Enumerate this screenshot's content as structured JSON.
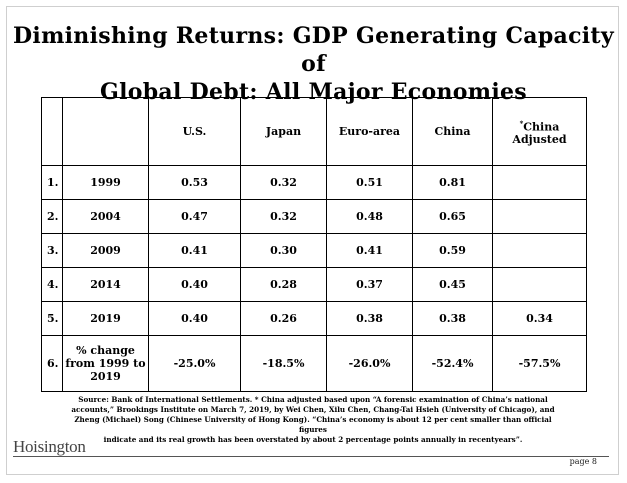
{
  "title": {
    "line1": "Diminishing Returns: GDP Generating Capacity of",
    "line2": "Global Debt: All Major Economies"
  },
  "table": {
    "headers": [
      "U.S.",
      "Japan",
      "Euro-area",
      "China"
    ],
    "china_adjusted_header": {
      "mark": "*",
      "line1": "China",
      "line2": "Adjusted"
    },
    "rows": [
      {
        "num": "1.",
        "label": "1999",
        "us": "0.53",
        "japan": "0.32",
        "euro": "0.51",
        "china": "0.81",
        "china_adj": ""
      },
      {
        "num": "2.",
        "label": "2004",
        "us": "0.47",
        "japan": "0.32",
        "euro": "0.48",
        "china": "0.65",
        "china_adj": ""
      },
      {
        "num": "3.",
        "label": "2009",
        "us": "0.41",
        "japan": "0.30",
        "euro": "0.41",
        "china": "0.59",
        "china_adj": ""
      },
      {
        "num": "4.",
        "label": "2014",
        "us": "0.40",
        "japan": "0.28",
        "euro": "0.37",
        "china": "0.45",
        "china_adj": ""
      },
      {
        "num": "5.",
        "label": "2019",
        "us": "0.40",
        "japan": "0.26",
        "euro": "0.38",
        "china": "0.38",
        "china_adj": "0.34"
      }
    ],
    "change_row": {
      "num": "6.",
      "label_lines": [
        "% change",
        "from 1999 to",
        "2019"
      ],
      "us": "-25.0%",
      "japan": "-18.5%",
      "euro": "-26.0%",
      "china": "-52.4%",
      "china_adj": "-57.5%"
    }
  },
  "source": {
    "line1": "Source: Bank of International Settlements. * China adjusted based upon “A forensic examination of China’s national",
    "line2": "accounts,” Brookings Institute on March 7, 2019, by Wei Chen, Xilu Chen, Chang-Tai Hsieh (University of Chicago), and",
    "line3": "Zheng (Michael) Song (Chinese University of Hong Kong). “China’s economy is about 12 per cent smaller than official figures",
    "line4": "indicate and its real growth has been overstated by about 2 percentage points annually in recentyears”."
  },
  "footer": {
    "logo": "Hoisington",
    "page": "page 8"
  }
}
